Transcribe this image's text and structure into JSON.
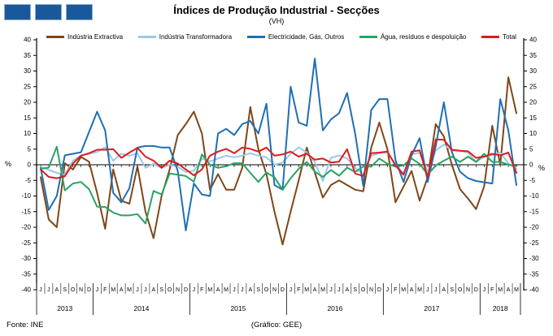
{
  "header": {
    "logo_square_color": "#19599B",
    "logo_square_count": 3
  },
  "axis": {
    "unit_label": "%",
    "y_min": -40,
    "y_max": 40,
    "y_step": 5
  },
  "footer": {
    "source": "Fonte: INE",
    "credit": "(Gráfico: GEE)"
  },
  "chart_data": {
    "type": "line",
    "title": "Índices de Produção Industrial - Secções",
    "subtitle": "(VH)",
    "xlabel": "",
    "ylabel": "%",
    "ylim": [
      -40,
      40
    ],
    "y_step": 5,
    "grid": false,
    "legend_position": "top",
    "x_range": "Jun 2013 - May 2018, monthly",
    "x_groups": [
      {
        "year": "2013",
        "months": [
          "J",
          "J",
          "A",
          "S",
          "O",
          "N",
          "D"
        ]
      },
      {
        "year": "2014",
        "months": [
          "J",
          "F",
          "M",
          "A",
          "M",
          "J",
          "J",
          "A",
          "S",
          "O",
          "N",
          "D"
        ]
      },
      {
        "year": "2015",
        "months": [
          "J",
          "F",
          "M",
          "A",
          "M",
          "J",
          "J",
          "A",
          "S",
          "O",
          "N",
          "D"
        ]
      },
      {
        "year": "2016",
        "months": [
          "J",
          "F",
          "M",
          "A",
          "M",
          "J",
          "J",
          "A",
          "S",
          "O",
          "N",
          "D"
        ]
      },
      {
        "year": "2017",
        "months": [
          "J",
          "F",
          "M",
          "A",
          "M",
          "J",
          "J",
          "A",
          "S",
          "O",
          "N",
          "D"
        ]
      },
      {
        "year": "2018",
        "months": [
          "J",
          "F",
          "M",
          "A",
          "M"
        ]
      }
    ],
    "series": [
      {
        "name": "Indústria Extractiva",
        "color": "#7F4618",
        "values": [
          -4,
          -17.5,
          -20,
          0.5,
          -1.5,
          2.5,
          1,
          -9,
          -20.5,
          -1.5,
          -11.5,
          -12.5,
          -0.5,
          -15,
          -23.5,
          -10,
          -1.5,
          9.5,
          13,
          17,
          10,
          -8,
          -3,
          -8,
          -8,
          -1,
          18.5,
          5,
          -3,
          -15,
          -25.5,
          -15,
          -5,
          5.5,
          -2.5,
          -10.5,
          -6.5,
          -5,
          -6.5,
          -8,
          -8.5,
          5.5,
          13.5,
          5,
          -12,
          -7,
          -2,
          -11.5,
          -4,
          13,
          9,
          0,
          -7.8,
          -10.8,
          -14.2,
          -7,
          12.5,
          0,
          28,
          16.5
        ]
      },
      {
        "name": "Indústria Transformadora",
        "color": "#9CC7E9",
        "values": [
          -0.6,
          -1.7,
          -2.6,
          -3.2,
          1.3,
          3,
          3.5,
          4.1,
          5.6,
          1.3,
          3.5,
          2.9,
          3.7,
          -1,
          0.3,
          -1,
          0,
          -0.6,
          -2.3,
          -1.9,
          2,
          1.1,
          2,
          2.9,
          2.4,
          2.9,
          3.7,
          2.9,
          2.4,
          0,
          0.7,
          3.5,
          5.6,
          3.9,
          0.9,
          -5.2,
          2.2,
          3,
          2,
          -1,
          -3.2,
          2.9,
          3.7,
          3.9,
          0.3,
          -2.8,
          3.3,
          3.9,
          -2.3,
          4.6,
          6.5,
          4.5,
          4.5,
          3.9,
          0.9,
          2.6,
          3,
          3.9,
          0.4,
          -1.3
        ]
      },
      {
        "name": "Electricidade, Gás, Outros",
        "color": "#1F6FB5",
        "values": [
          -1,
          -14.5,
          -10,
          3,
          3.5,
          4,
          10.5,
          17,
          11,
          -9,
          -12,
          -7.5,
          5.5,
          6,
          6,
          5.5,
          5.5,
          -2,
          -21,
          -6,
          -9.5,
          -10,
          10,
          11.5,
          9.5,
          13,
          14,
          10,
          19.5,
          -6.5,
          -8,
          25,
          13.5,
          12.5,
          34,
          11,
          14.5,
          16.5,
          23,
          10,
          -6.7,
          17.5,
          21,
          21,
          1.5,
          -5.5,
          3,
          8.5,
          -5.5,
          6,
          20,
          4,
          -2.2,
          -4.3,
          -5.2,
          -5.6,
          -6,
          21,
          11,
          -6.5
        ]
      },
      {
        "name": "Água, resíduos e despoluição",
        "color": "#29A364",
        "values": [
          -1.3,
          -0.9,
          5.8,
          -8.2,
          -6,
          -5.5,
          -7.8,
          -13.4,
          -13.5,
          -15.3,
          -16.2,
          -16.2,
          -15.8,
          -18.8,
          -8.4,
          -9.5,
          -2.8,
          -3.2,
          -3.6,
          -5.4,
          3.3,
          0,
          -1,
          -0.5,
          0.5,
          0.5,
          -2.6,
          -5.5,
          -2.5,
          -4,
          -8,
          -4.3,
          -1.3,
          0.9,
          -2.2,
          -3.9,
          -1.7,
          -3.5,
          -0.9,
          -2.3,
          -0.6,
          -0.6,
          2,
          0.3,
          -0.6,
          -0.2,
          2,
          0.3,
          -3.2,
          -0.2,
          1.3,
          2.6,
          0.9,
          2.6,
          0.9,
          3.5,
          0.9,
          0.9,
          0,
          -0.4
        ]
      },
      {
        "name": "Total",
        "color": "#DE1B1C",
        "values": [
          -1.5,
          -3.9,
          -4.3,
          -3.7,
          0.4,
          2.9,
          3.7,
          4.8,
          4.8,
          5,
          2.2,
          3.9,
          5.4,
          2.6,
          1.3,
          -1,
          1.3,
          0.4,
          -1.5,
          -3.4,
          -1.5,
          2.9,
          4.2,
          5.1,
          3.7,
          5.5,
          5.1,
          4.2,
          5.5,
          2.9,
          3.3,
          4.2,
          2.6,
          3.5,
          1.6,
          2,
          0.7,
          1,
          5,
          -2.8,
          -3.6,
          3.7,
          3.9,
          4.2,
          -0.2,
          -3.2,
          4.2,
          4.6,
          -4.1,
          8.1,
          8,
          4.8,
          4.5,
          4.3,
          2.2,
          2.6,
          3.5,
          3,
          3.9,
          -2.6
        ]
      }
    ]
  }
}
